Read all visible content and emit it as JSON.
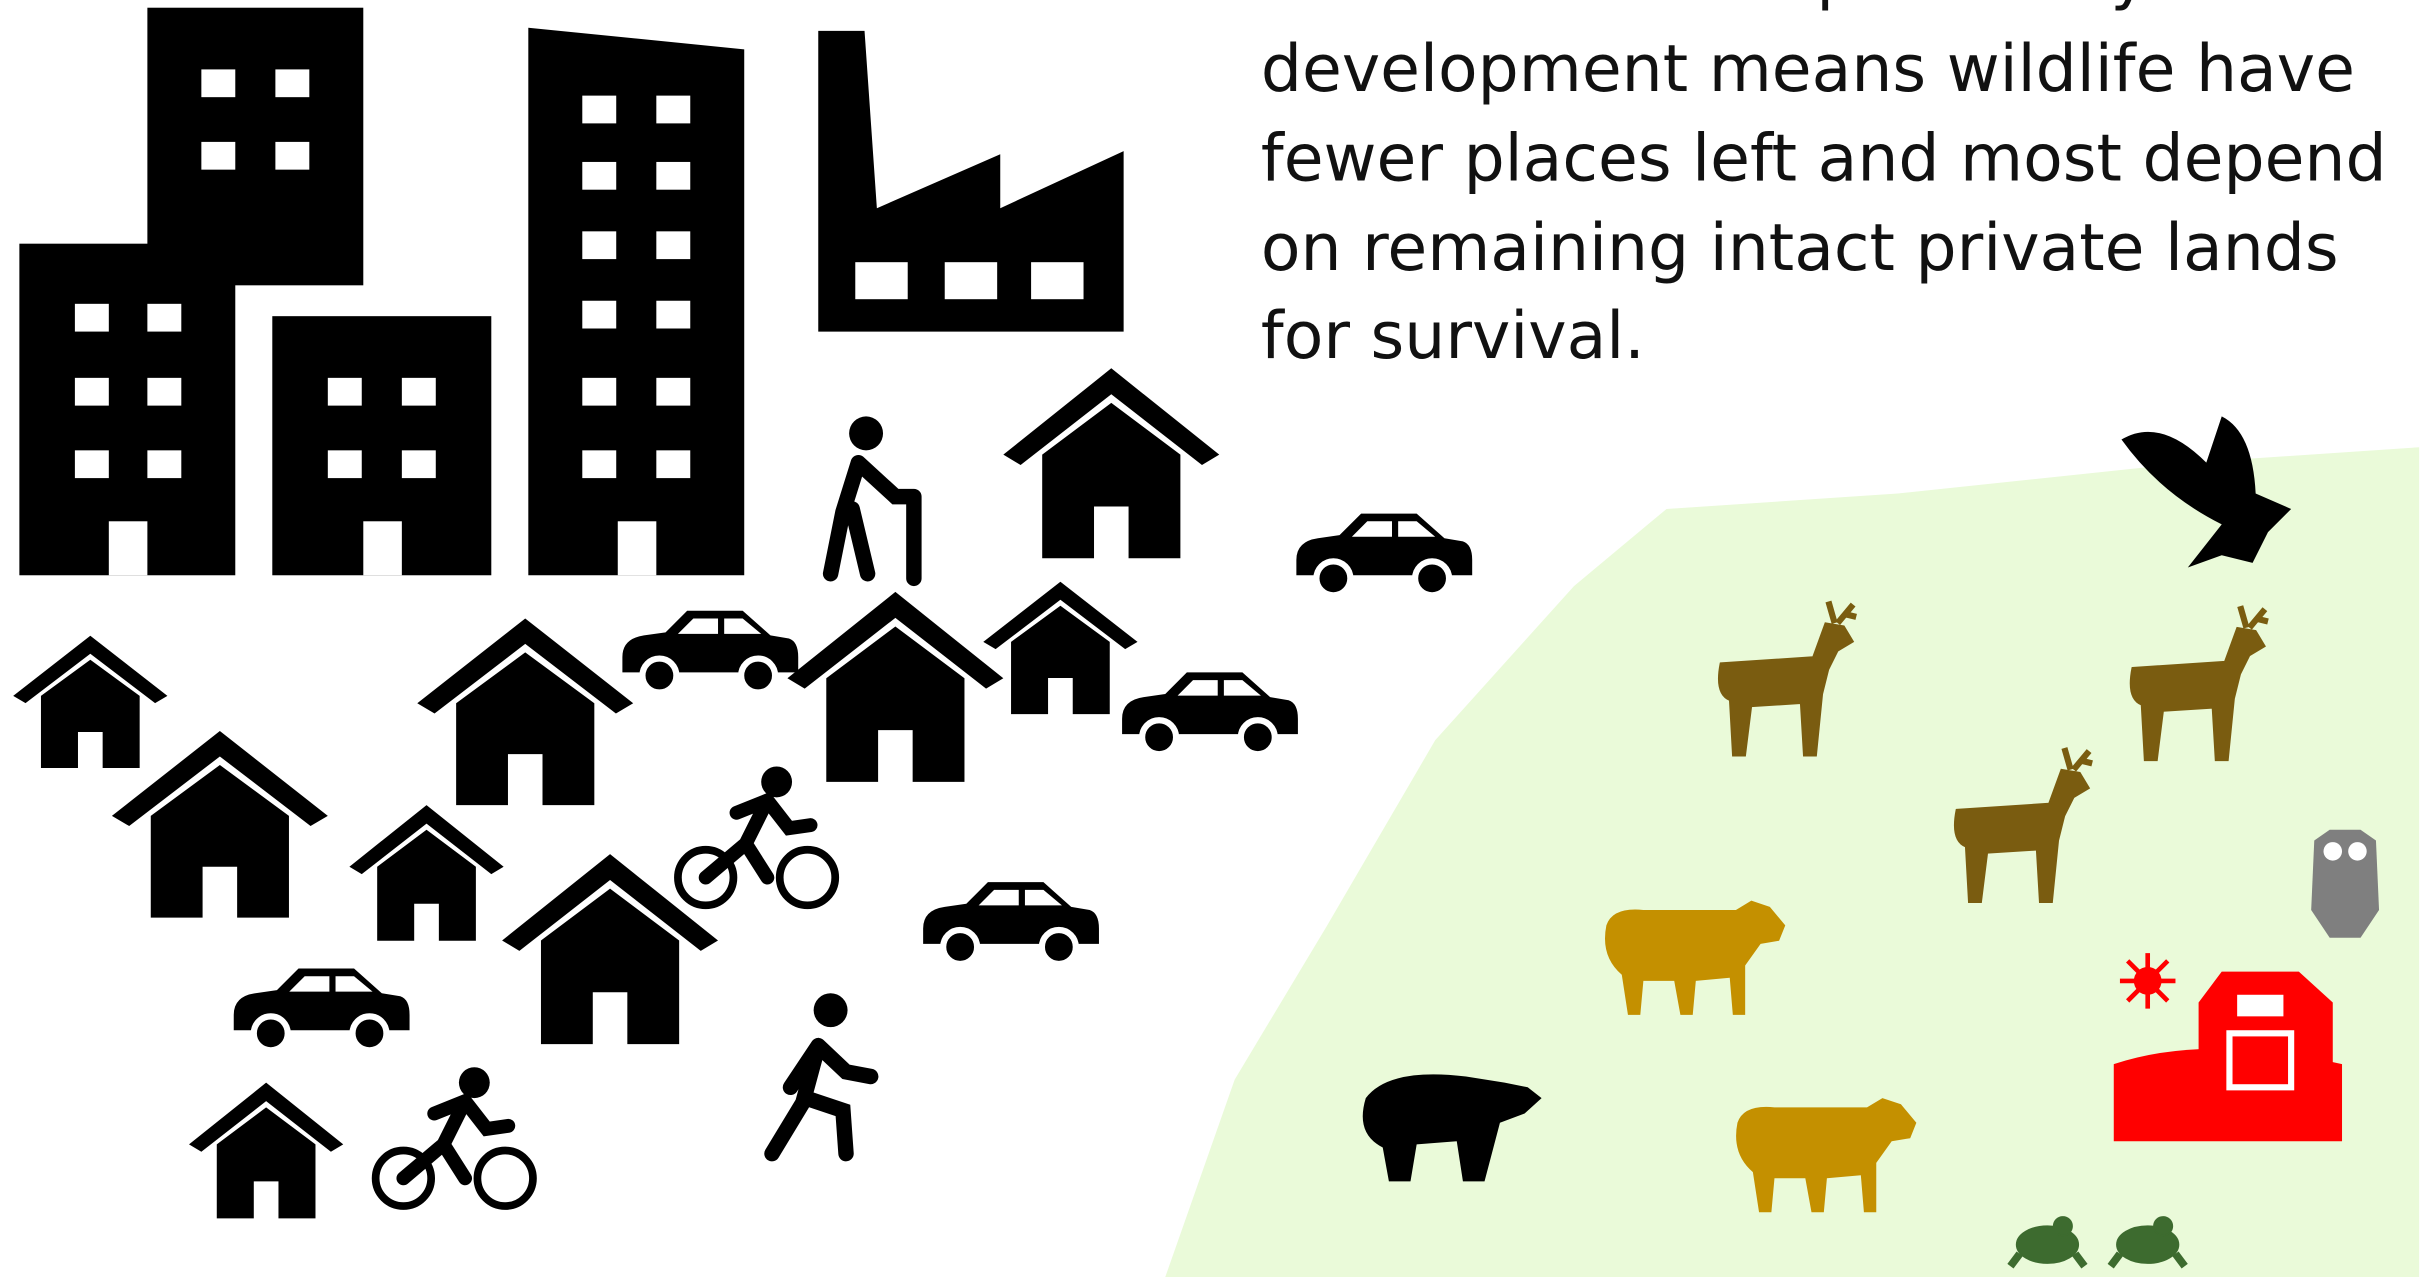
{
  "paragraph": {
    "lines": [
      "We all have a responsibility. Urban",
      "development means wildlife have",
      "fewer places left and most depend",
      "on remaining intact private lands",
      "for survival."
    ]
  }
}
